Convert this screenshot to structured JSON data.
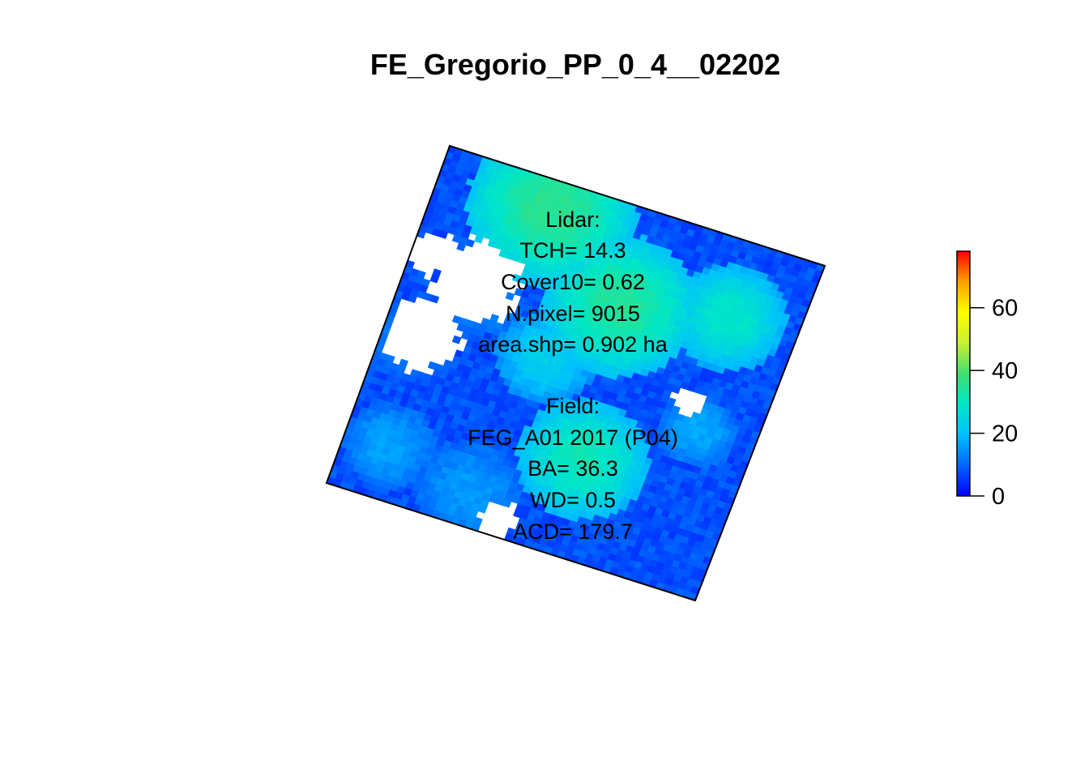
{
  "chart_data": {
    "type": "heatmap",
    "title": "FE_Gregorio_PP_0_4__02202",
    "legend": {
      "placement": "right",
      "range": [
        0,
        78
      ],
      "ticks": [
        0,
        20,
        40,
        60
      ],
      "tick_labels": [
        "0",
        "20",
        "40",
        "60"
      ],
      "colors": [
        "#0000ff",
        "#0066ff",
        "#00bfff",
        "#00e6c8",
        "#40e070",
        "#c8f030",
        "#ffff00",
        "#ffa000",
        "#ff0000"
      ]
    },
    "annotations": {
      "lidar": [
        "Lidar:",
        "TCH= 14.3",
        "Cover10= 0.62",
        "N.pixel= 9015",
        "area.shp= 0.902 ha"
      ],
      "field": [
        "Field:",
        "FEG_A01 2017 (P04)",
        "BA= 36.3",
        "WD= 0.5",
        "ACD= 179.7"
      ]
    },
    "patches": [
      {
        "u": 0.3,
        "v": 0.08,
        "r": 0.22,
        "value": 34
      },
      {
        "u": 0.55,
        "v": 0.28,
        "r": 0.2,
        "value": 33
      },
      {
        "u": 0.82,
        "v": 0.22,
        "r": 0.15,
        "value": 28
      },
      {
        "u": 0.6,
        "v": 0.72,
        "r": 0.17,
        "value": 30
      },
      {
        "u": 0.42,
        "v": 0.48,
        "r": 0.13,
        "value": 22
      },
      {
        "u": 0.22,
        "v": 0.38,
        "r": 0.1,
        "value": 14
      },
      {
        "u": 0.08,
        "v": 0.55,
        "r": 0.12,
        "value": 12
      },
      {
        "u": 0.35,
        "v": 0.9,
        "r": 0.14,
        "value": 14
      },
      {
        "u": 0.85,
        "v": 0.55,
        "r": 0.1,
        "value": 16
      },
      {
        "u": 0.12,
        "v": 0.85,
        "r": 0.12,
        "value": 15
      }
    ],
    "gaps": [
      {
        "u": 0.18,
        "v": 0.34,
        "r": 0.11
      },
      {
        "u": 0.1,
        "v": 0.52,
        "r": 0.1
      },
      {
        "u": 0.05,
        "v": 0.3,
        "r": 0.06
      },
      {
        "u": 0.45,
        "v": 0.95,
        "r": 0.05
      },
      {
        "u": 0.8,
        "v": 0.48,
        "r": 0.04
      }
    ]
  }
}
